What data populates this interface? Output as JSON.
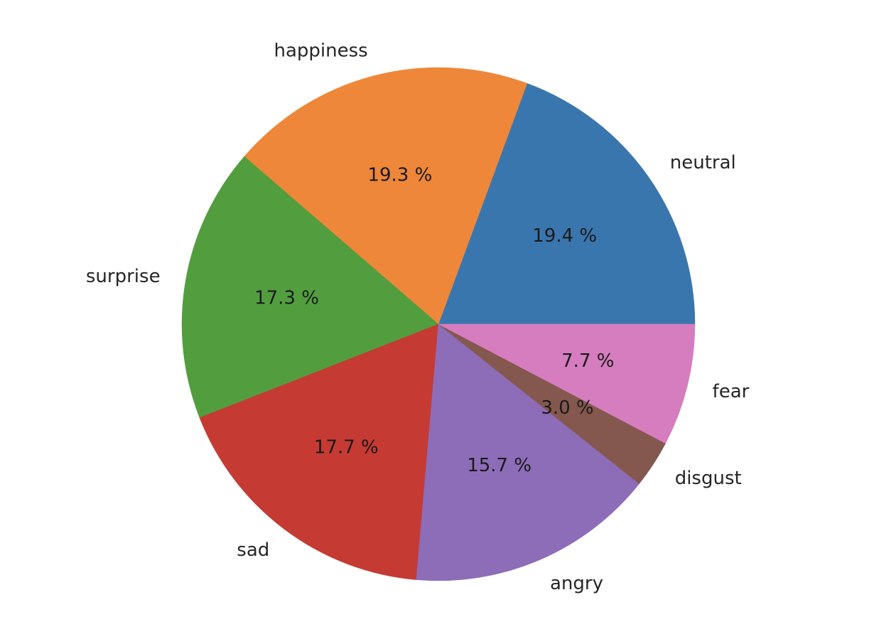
{
  "chart_data": {
    "type": "pie",
    "title": "",
    "start_angle_deg": 0,
    "direction": "counterclockwise",
    "legend": "none",
    "slices": [
      {
        "label": "neutral",
        "value": 19.4,
        "pct_label": "19.4 %",
        "color": "#3a76ae"
      },
      {
        "label": "happiness",
        "value": 19.3,
        "pct_label": "19.3 %",
        "color": "#ee8739"
      },
      {
        "label": "surprise",
        "value": 17.3,
        "pct_label": "17.3 %",
        "color": "#529e3f"
      },
      {
        "label": "sad",
        "value": 17.7,
        "pct_label": "17.7 %",
        "color": "#c53a33"
      },
      {
        "label": "angry",
        "value": 15.7,
        "pct_label": "15.7 %",
        "color": "#8d6cb8"
      },
      {
        "label": "disgust",
        "value": 3.0,
        "pct_label": "3.0 %",
        "color": "#84584e"
      },
      {
        "label": "fear",
        "value": 7.7,
        "pct_label": "7.7 %",
        "color": "#d57dbf"
      }
    ]
  }
}
